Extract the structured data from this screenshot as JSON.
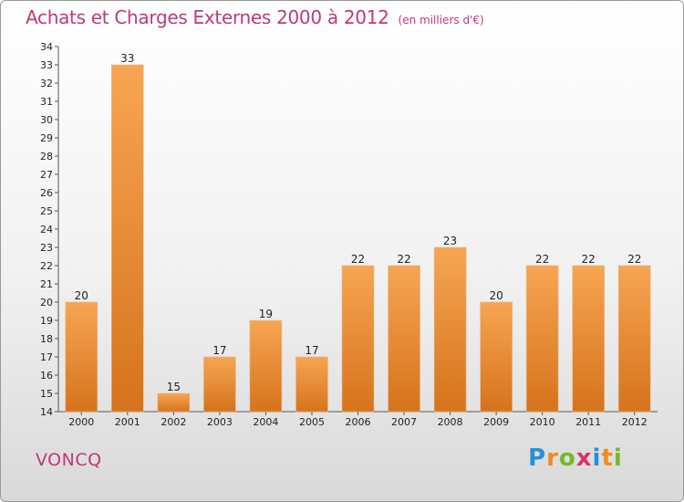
{
  "title": "Achats et Charges Externes 2000 à 2012",
  "subtitle": "(en milliers d'€)",
  "commune": "VONCQ",
  "logo": {
    "p": "P",
    "r": "r",
    "o": "o",
    "x": "x",
    "i": "i",
    "t": "t",
    "i2": "i"
  },
  "colors": {
    "bar_top": "#f7a553",
    "bar_bottom": "#d6731c",
    "title": "#c0387a"
  },
  "chart_data": {
    "type": "bar",
    "title": "Achats et Charges Externes 2000 à 2012",
    "subtitle": "(en milliers d'€)",
    "categories": [
      "2000",
      "2001",
      "2002",
      "2003",
      "2004",
      "2005",
      "2006",
      "2007",
      "2008",
      "2009",
      "2010",
      "2011",
      "2012"
    ],
    "values": [
      20,
      33,
      15,
      17,
      19,
      17,
      22,
      22,
      23,
      20,
      22,
      22,
      22
    ],
    "ylim": [
      14,
      34
    ],
    "yticks": [
      14,
      15,
      16,
      17,
      18,
      19,
      20,
      21,
      22,
      23,
      24,
      25,
      26,
      27,
      28,
      29,
      30,
      31,
      32,
      33,
      34
    ],
    "grid": false,
    "data_labels": true
  }
}
